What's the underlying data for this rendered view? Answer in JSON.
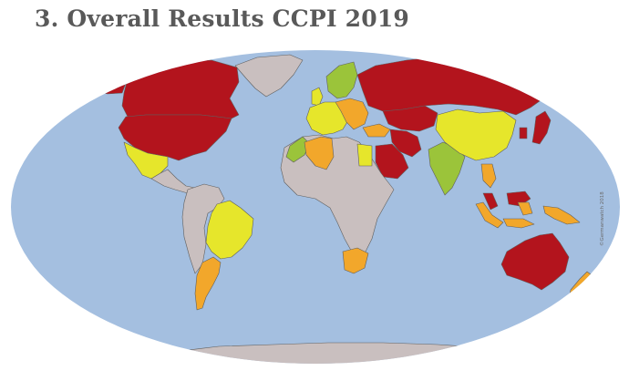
{
  "header": {
    "title": "3. Overall Results CCPI 2019"
  },
  "map": {
    "copyright": "©Germanwatch 2018",
    "colors": {
      "ocean": "#a4bfe0",
      "very_low": "#b3141d",
      "low": "#f2a72b",
      "medium": "#e6e62b",
      "high": "#9bc43a",
      "no_data": "#c9bfbf",
      "border": "#5f5f5f"
    },
    "regions": [
      {
        "name": "Canada",
        "rating": "very_low"
      },
      {
        "name": "Alaska",
        "rating": "very_low"
      },
      {
        "name": "Greenland",
        "rating": "no_data"
      },
      {
        "name": "United States",
        "rating": "very_low"
      },
      {
        "name": "Mexico",
        "rating": "medium"
      },
      {
        "name": "Central America",
        "rating": "no_data"
      },
      {
        "name": "Brazil",
        "rating": "medium"
      },
      {
        "name": "Argentina",
        "rating": "low"
      },
      {
        "name": "Rest of South America",
        "rating": "no_data"
      },
      {
        "name": "Scandinavia",
        "rating": "high"
      },
      {
        "name": "United Kingdom",
        "rating": "medium"
      },
      {
        "name": "Western Europe",
        "rating": "medium"
      },
      {
        "name": "Central Europe",
        "rating": "low"
      },
      {
        "name": "Russia",
        "rating": "very_low"
      },
      {
        "name": "Kazakhstan",
        "rating": "very_low"
      },
      {
        "name": "Iran",
        "rating": "very_low"
      },
      {
        "name": "Saudi Arabia",
        "rating": "very_low"
      },
      {
        "name": "Turkey",
        "rating": "low"
      },
      {
        "name": "Morocco",
        "rating": "high"
      },
      {
        "name": "Algeria",
        "rating": "low"
      },
      {
        "name": "Egypt",
        "rating": "medium"
      },
      {
        "name": "Rest of Africa",
        "rating": "no_data"
      },
      {
        "name": "South Africa",
        "rating": "low"
      },
      {
        "name": "India",
        "rating": "high"
      },
      {
        "name": "China",
        "rating": "medium"
      },
      {
        "name": "Japan",
        "rating": "very_low"
      },
      {
        "name": "South Korea",
        "rating": "very_low"
      },
      {
        "name": "Thailand",
        "rating": "low"
      },
      {
        "name": "Malaysia",
        "rating": "very_low"
      },
      {
        "name": "Indonesia",
        "rating": "low"
      },
      {
        "name": "Australia",
        "rating": "very_low"
      },
      {
        "name": "New Zealand",
        "rating": "low"
      },
      {
        "name": "Antarctica",
        "rating": "no_data"
      }
    ]
  }
}
